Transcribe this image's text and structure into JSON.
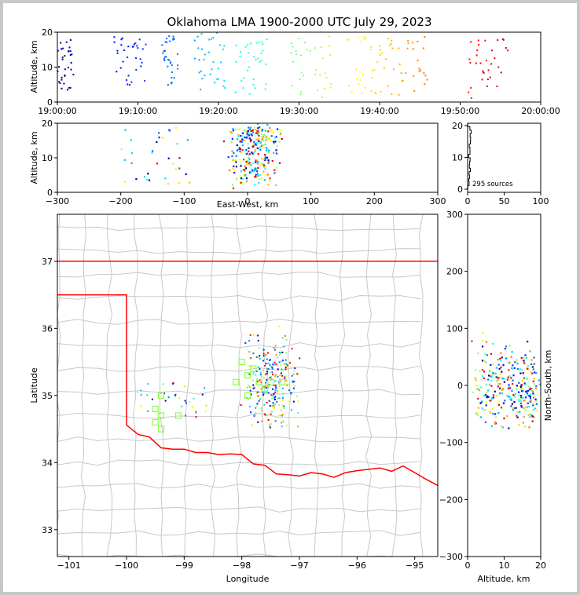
{
  "title": "Oklahoma LMA 1900-2000 UTC July 29, 2023",
  "colors": {
    "background": "#c8c8c8",
    "panel": "#ffffff",
    "state_line": "#ff0000",
    "county_line": "#c8c8c8",
    "map_marker": "#88ff44"
  },
  "panels": {
    "time_height": {
      "ylabel": "Altitude, km",
      "xticks": [
        "19:00:00",
        "19:10:00",
        "19:20:00",
        "19:30:00",
        "19:40:00",
        "19:50:00",
        "20:00:00"
      ],
      "yticks": [
        "0",
        "10",
        "20"
      ]
    },
    "ew_height": {
      "xlabel": "East-West, km",
      "ylabel": "Altitude, km",
      "xticks": [
        "−300",
        "−200",
        "−100",
        "0",
        "100",
        "200",
        "300"
      ],
      "yticks": [
        "0",
        "10",
        "20"
      ]
    },
    "histogram": {
      "xticks": [
        "0",
        "50",
        "100"
      ],
      "yticks": [
        "0",
        "10",
        "20"
      ],
      "source_count_label": "295 sources"
    },
    "plan_view": {
      "xlabel": "Longitude",
      "ylabel": "Latitude",
      "xticks": [
        "−101",
        "−100",
        "−99",
        "−98",
        "−97",
        "−96",
        "−95"
      ],
      "yticks": [
        "33",
        "34",
        "35",
        "36",
        "37"
      ]
    },
    "ns_height": {
      "xlabel": "Altitude, km",
      "ylabel": "North-South, km",
      "xticks": [
        "0",
        "10",
        "20"
      ],
      "yticks": [
        "−300",
        "−200",
        "−100",
        "0",
        "100",
        "200",
        "300"
      ]
    }
  },
  "chart_data": [
    {
      "type": "scatter",
      "panel": "time_height",
      "x_unit": "minutes after 19:00 UTC",
      "xlim": [
        0,
        60
      ],
      "ylim": [
        0,
        20
      ],
      "color_by": "time (blue to red colormap)",
      "clusters_approx": [
        {
          "t_range": [
            0,
            2
          ],
          "alt_range": [
            1,
            19
          ]
        },
        {
          "t_range": [
            7,
            11
          ],
          "alt_range": [
            2,
            19
          ]
        },
        {
          "t_range": [
            13,
            15
          ],
          "alt_range": [
            2,
            19
          ]
        },
        {
          "t_range": [
            17,
            21
          ],
          "alt_range": [
            1,
            20
          ]
        },
        {
          "t_range": [
            22,
            26
          ],
          "alt_range": [
            2,
            18
          ]
        },
        {
          "t_range": [
            29,
            34
          ],
          "alt_range": [
            1,
            19
          ]
        },
        {
          "t_range": [
            36,
            41
          ],
          "alt_range": [
            1,
            19
          ]
        },
        {
          "t_range": [
            41,
            46
          ],
          "alt_range": [
            1,
            19
          ]
        },
        {
          "t_range": [
            51,
            56
          ],
          "alt_range": [
            1,
            18
          ]
        }
      ],
      "total_sources": 295
    },
    {
      "type": "scatter",
      "panel": "ew_height",
      "xlim": [
        -300,
        300
      ],
      "ylim": [
        0,
        20
      ],
      "main_cluster": {
        "x_range": [
          -60,
          60
        ],
        "alt_range": [
          0,
          20
        ]
      },
      "outliers_x_range": [
        -215,
        130
      ]
    },
    {
      "type": "bar",
      "panel": "histogram",
      "orientation": "horizontal",
      "xlim": [
        0,
        100
      ],
      "ylim": [
        0,
        20
      ],
      "max_count_approx": 5
    },
    {
      "type": "scatter",
      "panel": "plan_view",
      "xlim": [
        -101.2,
        -94.6
      ],
      "ylim": [
        32.6,
        37.7
      ],
      "main_cluster": {
        "lon_range": [
          -98.4,
          -97.2
        ],
        "lat_range": [
          34.8,
          35.6
        ]
      },
      "secondary_cluster": {
        "lon_range": [
          -99.6,
          -99.0
        ],
        "lat_range": [
          34.5,
          35.0
        ]
      },
      "marker_squares": [
        {
          "lon": -99.4,
          "lat": 35.0
        },
        {
          "lon": -99.5,
          "lat": 34.8
        },
        {
          "lon": -99.4,
          "lat": 34.7
        },
        {
          "lon": -99.1,
          "lat": 34.7
        },
        {
          "lon": -99.5,
          "lat": 34.6
        },
        {
          "lon": -99.4,
          "lat": 34.5
        },
        {
          "lon": -98.1,
          "lat": 35.2
        },
        {
          "lon": -98.0,
          "lat": 35.5
        },
        {
          "lon": -97.9,
          "lat": 35.3
        },
        {
          "lon": -97.8,
          "lat": 35.4
        },
        {
          "lon": -97.7,
          "lat": 35.2
        },
        {
          "lon": -97.5,
          "lat": 35.2
        },
        {
          "lon": -97.3,
          "lat": 35.2
        },
        {
          "lon": -97.6,
          "lat": 35.1
        },
        {
          "lon": -97.9,
          "lat": 35.0
        }
      ]
    },
    {
      "type": "scatter",
      "panel": "ns_height",
      "xlim": [
        0,
        20
      ],
      "ylim": [
        -300,
        300
      ],
      "main_cluster": {
        "alt_range": [
          0,
          20
        ],
        "ns_range": [
          -90,
          95
        ]
      },
      "outliers_ns_range": [
        -150,
        95
      ]
    }
  ]
}
